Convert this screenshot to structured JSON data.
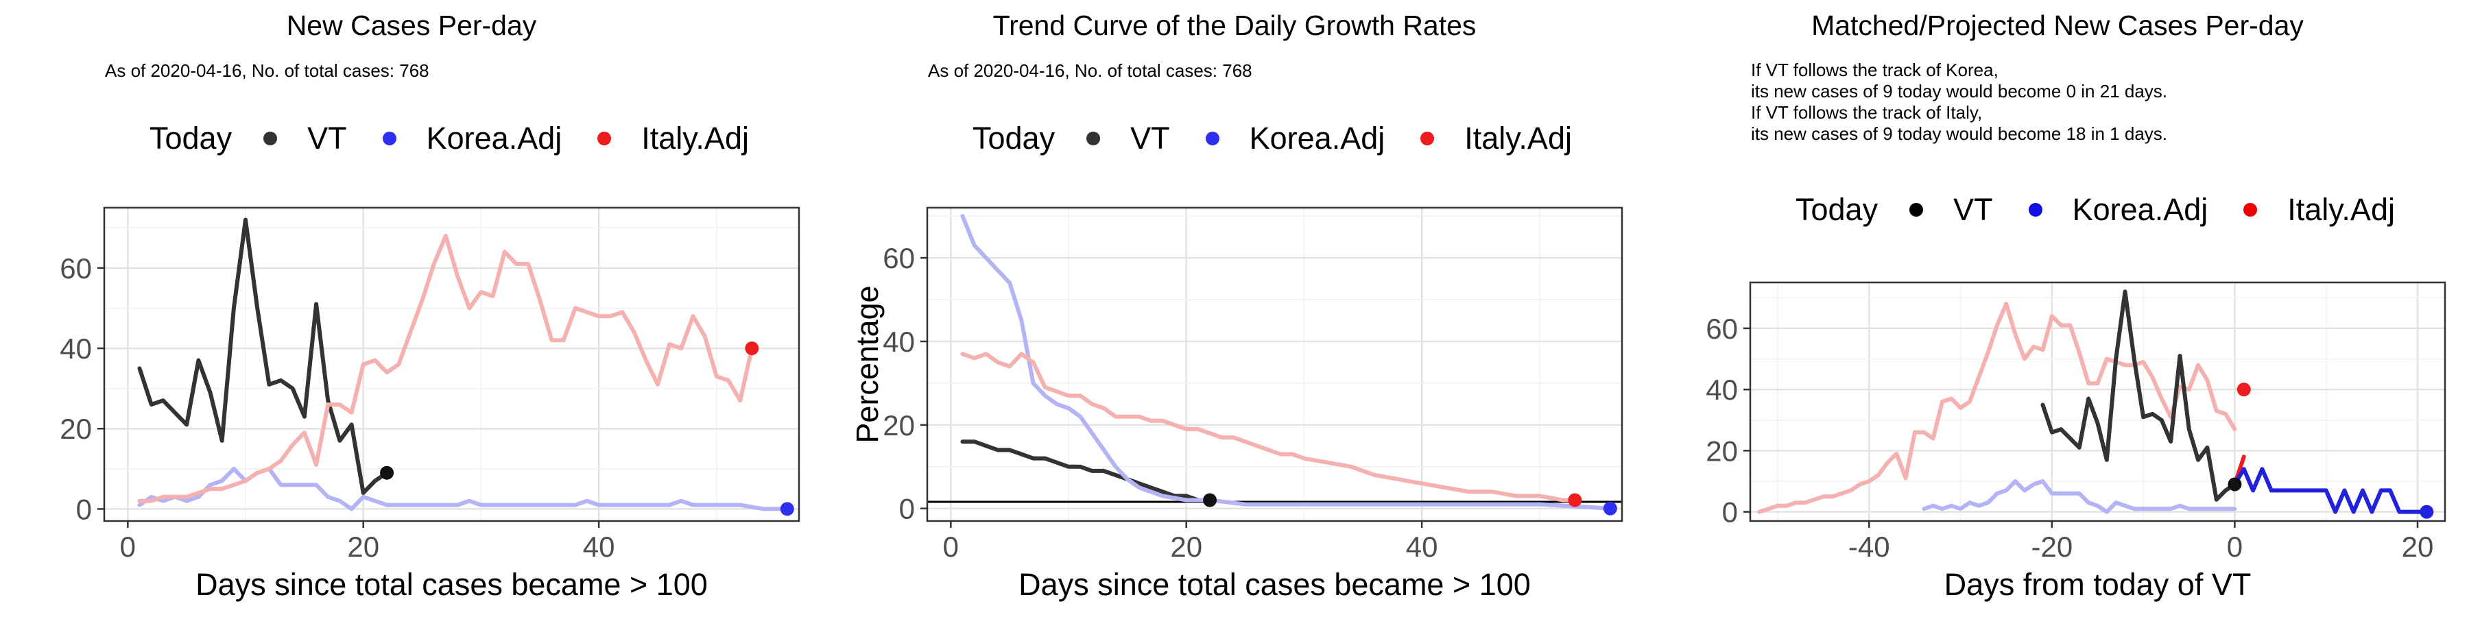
{
  "chart_data": [
    {
      "type": "line",
      "title": "New Cases Per-day",
      "subtitle": "As of 2020-04-16, No. of total cases: 768",
      "xlabel": "Days since total cases became > 100",
      "ylabel": "",
      "xlim": [
        -2,
        57
      ],
      "ylim": [
        -3,
        75
      ],
      "xticks": [
        0,
        20,
        40
      ],
      "yticks": [
        0,
        20,
        40,
        60
      ],
      "grid": true,
      "legend": {
        "title": "Today",
        "position": "top",
        "entries": [
          "VT",
          "Korea.Adj",
          "Italy.Adj"
        ]
      },
      "series": [
        {
          "name": "VT",
          "color": "#333333",
          "x": [
            1,
            2,
            3,
            4,
            5,
            6,
            7,
            8,
            9,
            10,
            11,
            12,
            13,
            14,
            15,
            16,
            17,
            18,
            19,
            20,
            21,
            22
          ],
          "y": [
            35,
            26,
            27,
            24,
            21,
            37,
            29,
            17,
            50,
            72,
            50,
            31,
            32,
            30,
            23,
            51,
            27,
            17,
            21,
            4,
            7,
            9
          ]
        },
        {
          "name": "Korea.Adj",
          "color": "#b3b3f5",
          "x": [
            1,
            2,
            3,
            4,
            5,
            6,
            7,
            8,
            9,
            10,
            11,
            12,
            13,
            14,
            15,
            16,
            17,
            18,
            19,
            20,
            21,
            22,
            24,
            26,
            28,
            29,
            30,
            32,
            34,
            36,
            38,
            39,
            40,
            42,
            44,
            46,
            47,
            48,
            50,
            52,
            54,
            56
          ],
          "y": [
            1,
            3,
            2,
            3,
            2,
            3,
            6,
            7,
            10,
            7,
            9,
            10,
            6,
            6,
            6,
            6,
            3,
            2,
            0,
            3,
            2,
            1,
            1,
            1,
            1,
            2,
            1,
            1,
            1,
            1,
            1,
            2,
            1,
            1,
            1,
            1,
            2,
            1,
            1,
            1,
            0,
            0
          ]
        },
        {
          "name": "Italy.Adj",
          "color": "#f5b0b0",
          "x": [
            1,
            2,
            3,
            4,
            5,
            6,
            7,
            8,
            9,
            10,
            11,
            12,
            13,
            14,
            15,
            16,
            17,
            18,
            19,
            20,
            21,
            22,
            23,
            24,
            25,
            26,
            27,
            28,
            29,
            30,
            31,
            32,
            33,
            34,
            35,
            36,
            37,
            38,
            39,
            40,
            41,
            42,
            43,
            44,
            45,
            46,
            47,
            48,
            49,
            50,
            51,
            52,
            53
          ],
          "y": [
            2,
            2,
            3,
            3,
            3,
            4,
            5,
            5,
            6,
            7,
            9,
            10,
            12,
            16,
            19,
            11,
            26,
            26,
            24,
            36,
            37,
            34,
            36,
            44,
            52,
            61,
            68,
            58,
            50,
            54,
            53,
            64,
            61,
            61,
            52,
            42,
            42,
            50,
            49,
            48,
            48,
            49,
            44,
            37,
            31,
            41,
            40,
            48,
            43,
            33,
            32,
            27,
            40
          ]
        }
      ],
      "today": [
        {
          "name": "VT",
          "x": 22,
          "y": 9,
          "color": "#111111"
        },
        {
          "name": "Korea.Adj",
          "x": 56,
          "y": 0,
          "color": "#2f2ff0"
        },
        {
          "name": "Italy.Adj",
          "x": 53,
          "y": 40,
          "color": "#ee1c1c"
        }
      ]
    },
    {
      "type": "line",
      "title": "Trend Curve of the Daily Growth Rates",
      "subtitle": "As of 2020-04-16, No. of total cases: 768",
      "xlabel": "Days since total cases became > 100",
      "ylabel": "Percentage",
      "xlim": [
        -2,
        57
      ],
      "ylim": [
        -3,
        72
      ],
      "xticks": [
        0,
        20,
        40
      ],
      "yticks": [
        0,
        20,
        40,
        60
      ],
      "grid": true,
      "hline": 1.6,
      "legend": {
        "title": "Today",
        "position": "top",
        "entries": [
          "VT",
          "Korea.Adj",
          "Italy.Adj"
        ]
      },
      "series": [
        {
          "name": "VT",
          "color": "#333333",
          "x": [
            1,
            2,
            3,
            4,
            5,
            6,
            7,
            8,
            9,
            10,
            11,
            12,
            13,
            14,
            15,
            16,
            17,
            18,
            19,
            20,
            21,
            22
          ],
          "y": [
            16,
            16,
            15,
            14,
            14,
            13,
            12,
            12,
            11,
            10,
            10,
            9,
            9,
            8,
            7,
            6,
            5,
            4,
            3,
            3,
            2,
            2
          ]
        },
        {
          "name": "Korea.Adj",
          "color": "#b3b3f5",
          "x": [
            1,
            2,
            3,
            4,
            5,
            6,
            7,
            8,
            9,
            10,
            11,
            12,
            13,
            14,
            15,
            16,
            17,
            18,
            20,
            22,
            25,
            30,
            35,
            40,
            45,
            50,
            56
          ],
          "y": [
            70,
            63,
            60,
            57,
            54,
            45,
            30,
            27,
            25,
            24,
            22,
            18,
            14,
            10,
            7,
            5,
            4,
            3,
            2,
            2,
            1,
            1,
            1,
            1,
            1,
            1,
            0
          ]
        },
        {
          "name": "Italy.Adj",
          "color": "#f5b0b0",
          "x": [
            1,
            2,
            3,
            4,
            5,
            6,
            7,
            8,
            9,
            10,
            11,
            12,
            13,
            14,
            15,
            16,
            17,
            18,
            19,
            20,
            21,
            22,
            23,
            24,
            25,
            26,
            27,
            28,
            29,
            30,
            32,
            34,
            36,
            38,
            40,
            42,
            44,
            46,
            48,
            50,
            52,
            53
          ],
          "y": [
            37,
            36,
            37,
            35,
            34,
            37,
            35,
            29,
            28,
            27,
            27,
            25,
            24,
            22,
            22,
            22,
            21,
            21,
            20,
            19,
            19,
            18,
            17,
            17,
            16,
            15,
            14,
            13,
            13,
            12,
            11,
            10,
            8,
            7,
            6,
            5,
            4,
            4,
            3,
            3,
            2,
            2
          ]
        }
      ],
      "today": [
        {
          "name": "VT",
          "x": 22,
          "y": 2,
          "color": "#111111"
        },
        {
          "name": "Korea.Adj",
          "x": 56,
          "y": 0,
          "color": "#2f2ff0"
        },
        {
          "name": "Italy.Adj",
          "x": 53,
          "y": 2,
          "color": "#ee1c1c"
        }
      ]
    },
    {
      "type": "line",
      "title": "Matched/Projected New Cases Per-day",
      "subtitle": "",
      "notes": [
        "If VT follows the track of Korea,",
        "its new cases of 9 today would become 0 in 21 days.",
        "If VT follows the track of Italy,",
        "its new cases of 9 today would become 18 in 1 days."
      ],
      "xlabel": "Days from today of VT",
      "ylabel": "",
      "xlim": [
        -53,
        23
      ],
      "ylim": [
        -3,
        75
      ],
      "xticks": [
        -40,
        -20,
        0,
        20
      ],
      "yticks": [
        0,
        20,
        40,
        60
      ],
      "grid": true,
      "legend": {
        "title": "Today",
        "position": "top",
        "entries": [
          "VT",
          "Korea.Adj",
          "Italy.Adj"
        ]
      },
      "series": [
        {
          "name": "Italy.Adj",
          "color": "#f5b0b0",
          "x": [
            -52,
            -51,
            -50,
            -49,
            -48,
            -47,
            -46,
            -45,
            -44,
            -43,
            -42,
            -41,
            -40,
            -39,
            -38,
            -37,
            -36,
            -35,
            -34,
            -33,
            -32,
            -31,
            -30,
            -29,
            -28,
            -27,
            -26,
            -25,
            -24,
            -23,
            -22,
            -21,
            -20,
            -19,
            -18,
            -17,
            -16,
            -15,
            -14,
            -13,
            -12,
            -11,
            -10,
            -9,
            -8,
            -7,
            -6,
            -5,
            -4,
            -3,
            -2,
            -1,
            0
          ],
          "y": [
            0,
            1,
            2,
            2,
            3,
            3,
            4,
            5,
            5,
            6,
            7,
            9,
            10,
            12,
            16,
            19,
            11,
            26,
            26,
            24,
            36,
            37,
            34,
            36,
            44,
            52,
            61,
            68,
            58,
            50,
            54,
            53,
            64,
            61,
            61,
            52,
            42,
            42,
            50,
            49,
            48,
            48,
            49,
            44,
            37,
            31,
            41,
            40,
            48,
            43,
            33,
            32,
            27
          ]
        },
        {
          "name": "Korea.Adj",
          "color": "#b3b3f5",
          "x": [
            -34,
            -33,
            -32,
            -31,
            -30,
            -29,
            -28,
            -27,
            -26,
            -25,
            -24,
            -23,
            -22,
            -21,
            -20,
            -19,
            -18,
            -17,
            -16,
            -15,
            -14,
            -13,
            -12,
            -11,
            -10,
            -9,
            -8,
            -7,
            -6,
            -5,
            -4,
            -3,
            -2,
            -1,
            0
          ],
          "y": [
            1,
            2,
            1,
            2,
            1,
            3,
            2,
            3,
            6,
            7,
            10,
            7,
            9,
            10,
            6,
            6,
            6,
            6,
            3,
            2,
            0,
            3,
            2,
            1,
            1,
            1,
            1,
            1,
            2,
            1,
            1,
            1,
            1,
            1,
            1
          ]
        },
        {
          "name": "VT",
          "color": "#333333",
          "x": [
            -21,
            -20,
            -19,
            -18,
            -17,
            -16,
            -15,
            -14,
            -13,
            -12,
            -11,
            -10,
            -9,
            -8,
            -7,
            -6,
            -5,
            -4,
            -3,
            -2,
            -1,
            0
          ],
          "y": [
            35,
            26,
            27,
            24,
            21,
            37,
            29,
            17,
            50,
            72,
            50,
            31,
            32,
            30,
            23,
            51,
            27,
            17,
            21,
            4,
            7,
            9
          ]
        },
        {
          "name": "Italy.Adj (projected)",
          "color": "#ee1c1c",
          "x": [
            0,
            1
          ],
          "y": [
            9,
            18
          ]
        },
        {
          "name": "Korea.Adj (projected)",
          "color": "#2222dd",
          "x": [
            0,
            1,
            2,
            3,
            4,
            5,
            6,
            7,
            8,
            9,
            10,
            11,
            12,
            13,
            14,
            15,
            16,
            17,
            18,
            19,
            20,
            21
          ],
          "y": [
            9,
            14,
            7,
            14,
            7,
            7,
            7,
            7,
            7,
            7,
            7,
            0,
            7,
            0,
            7,
            0,
            7,
            7,
            0,
            0,
            0,
            0
          ]
        }
      ],
      "today": [
        {
          "name": "VT",
          "x": 0,
          "y": 9,
          "color": "#111111"
        },
        {
          "name": "Korea.Adj",
          "x": 21,
          "y": 0,
          "color": "#2222dd"
        },
        {
          "name": "Italy.Adj",
          "x": 1,
          "y": 40,
          "color": "#ee1c1c"
        }
      ]
    }
  ],
  "legend_colors": {
    "VT": "#333333",
    "Korea.Adj": "#2f2ff0",
    "Italy.Adj": "#ee1c1c"
  }
}
